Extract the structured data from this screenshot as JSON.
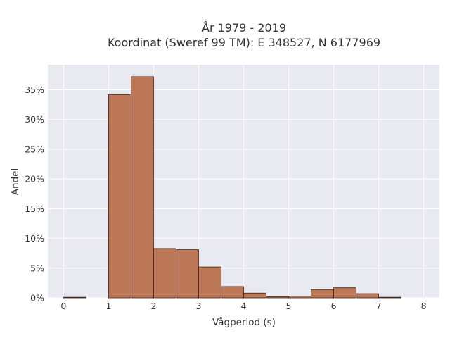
{
  "chart_data": {
    "type": "bar",
    "title_line1": "År 1979 - 2019",
    "title_line2": "Koordinat (Sweref 99 TM): E 348527, N 6177969",
    "xlabel": "Vågperiod (s)",
    "ylabel": "Andel",
    "xlim": [
      -0.35,
      8.35
    ],
    "ylim": [
      0,
      0.392
    ],
    "x_ticks": [
      0,
      1,
      2,
      3,
      4,
      5,
      6,
      7,
      8
    ],
    "x_tick_labels": [
      "0",
      "1",
      "2",
      "3",
      "4",
      "5",
      "6",
      "7",
      "8"
    ],
    "y_ticks": [
      0,
      0.05,
      0.1,
      0.15,
      0.2,
      0.25,
      0.3,
      0.35
    ],
    "y_tick_labels": [
      "0%",
      "5%",
      "10%",
      "15%",
      "20%",
      "25%",
      "30%",
      "35%"
    ],
    "bin_width": 0.5,
    "bins": [
      {
        "start": 0.0,
        "value": 0.001
      },
      {
        "start": 0.5,
        "value": 0.0
      },
      {
        "start": 1.0,
        "value": 0.342
      },
      {
        "start": 1.5,
        "value": 0.372
      },
      {
        "start": 2.0,
        "value": 0.083
      },
      {
        "start": 2.5,
        "value": 0.081
      },
      {
        "start": 3.0,
        "value": 0.052
      },
      {
        "start": 3.5,
        "value": 0.019
      },
      {
        "start": 4.0,
        "value": 0.008
      },
      {
        "start": 4.5,
        "value": 0.002
      },
      {
        "start": 5.0,
        "value": 0.003
      },
      {
        "start": 5.5,
        "value": 0.014
      },
      {
        "start": 6.0,
        "value": 0.017
      },
      {
        "start": 6.5,
        "value": 0.007
      },
      {
        "start": 7.0,
        "value": 0.001
      },
      {
        "start": 7.5,
        "value": 0.0
      }
    ],
    "bar_color": "#b9714d",
    "bar_edge_color": "#3a2418",
    "plot_background": "#e9e9f1",
    "grid": true,
    "grid_color": "#ffffff"
  }
}
